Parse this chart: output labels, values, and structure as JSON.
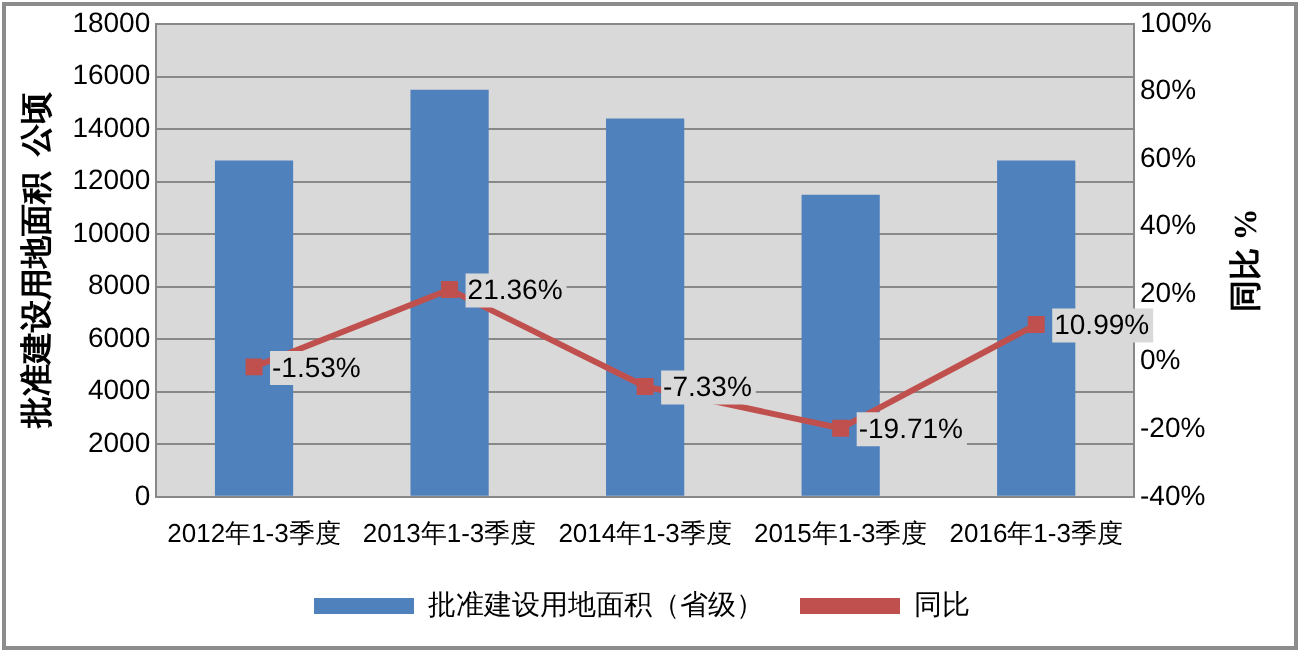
{
  "chart_data": {
    "type": "bar",
    "categories": [
      "2012年1-3季度",
      "2013年1-3季度",
      "2014年1-3季度",
      "2015年1-3季度",
      "2016年1-3季度"
    ],
    "series": [
      {
        "name": "批准建设用地面积（省级）",
        "color": "#4f81bd",
        "values": [
          12800,
          15500,
          14400,
          11500,
          12800
        ]
      },
      {
        "name": "同比",
        "type": "line",
        "axis": "y2",
        "color": "#c0504d",
        "values": [
          -1.53,
          21.36,
          -7.33,
          -19.71,
          10.99
        ],
        "value_labels": [
          "-1.53%",
          "21.36%",
          "-7.33%",
          "-19.71%",
          "10.99%"
        ]
      }
    ],
    "ylabel": "批准建设用地面积  公顷",
    "y2label": "同比 %",
    "ylim": [
      0,
      18000
    ],
    "yticks": [
      0,
      2000,
      4000,
      6000,
      8000,
      10000,
      12000,
      14000,
      16000,
      18000
    ],
    "y2lim": [
      -40,
      100
    ],
    "y2ticks": [
      {
        "value": -40,
        "label": "-40%"
      },
      {
        "value": -20,
        "label": "-20%"
      },
      {
        "value": 0,
        "label": "0%"
      },
      {
        "value": 20,
        "label": "20%"
      },
      {
        "value": 40,
        "label": "40%"
      },
      {
        "value": 60,
        "label": "60%"
      },
      {
        "value": 80,
        "label": "80%"
      },
      {
        "value": 100,
        "label": "100%"
      }
    ],
    "grid": "y",
    "legend": "bottom",
    "marker": "square",
    "line_style": "solid"
  }
}
